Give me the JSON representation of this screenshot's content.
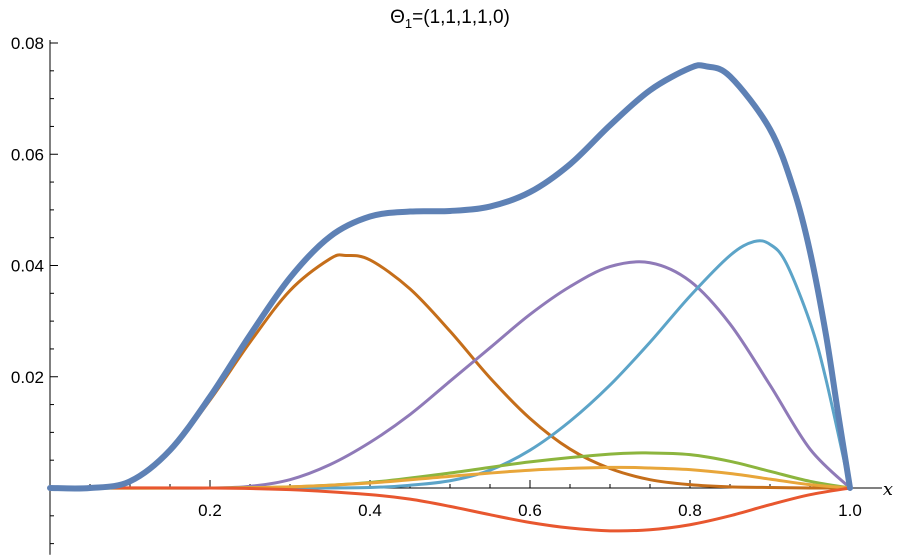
{
  "chart_data": {
    "type": "line",
    "title": {
      "main": "Θ",
      "subscript": "1",
      "rest": "=(1,1,1,1,0)"
    },
    "xlabel": "x",
    "ylabel": "",
    "xlim": [
      0,
      1.0
    ],
    "ylim": [
      -0.012,
      0.082
    ],
    "x_ticks": [
      0.2,
      0.4,
      0.6,
      0.8,
      1.0
    ],
    "x_tick_labels": [
      "0.2",
      "0.4",
      "0.6",
      "0.8",
      "1.0"
    ],
    "x_minor_step": 0.05,
    "y_ticks": [
      0.02,
      0.04,
      0.06,
      0.08
    ],
    "y_tick_labels": [
      "0.02",
      "0.04",
      "0.06",
      "0.08"
    ],
    "y_minor_step": 0.005,
    "grid": false,
    "legend": "none",
    "series": [
      {
        "color": "#5e81b5",
        "width": 6,
        "x": [
          0,
          0.05,
          0.1,
          0.15,
          0.2,
          0.25,
          0.3,
          0.35,
          0.4,
          0.45,
          0.5,
          0.55,
          0.6,
          0.65,
          0.7,
          0.75,
          0.8,
          0.82,
          0.85,
          0.9,
          0.93,
          0.95,
          0.97,
          0.985,
          1.0
        ],
        "y": [
          0,
          0,
          0.0012,
          0.0068,
          0.0164,
          0.0275,
          0.0378,
          0.0452,
          0.0488,
          0.0497,
          0.0498,
          0.0506,
          0.0532,
          0.0582,
          0.0652,
          0.0715,
          0.0755,
          0.0758,
          0.074,
          0.0645,
          0.0535,
          0.0425,
          0.0275,
          0.0135,
          0
        ]
      },
      {
        "color": "#c56e1a",
        "width": 3,
        "x": [
          0,
          0.05,
          0.1,
          0.15,
          0.2,
          0.25,
          0.3,
          0.35,
          0.37,
          0.4,
          0.45,
          0.5,
          0.55,
          0.6,
          0.65,
          0.7,
          0.75,
          0.8,
          0.85,
          0.9,
          0.95,
          1.0
        ],
        "y": [
          0,
          0,
          0.0012,
          0.0066,
          0.0158,
          0.0262,
          0.0355,
          0.0412,
          0.0418,
          0.041,
          0.0358,
          0.0282,
          0.0198,
          0.0125,
          0.007,
          0.0035,
          0.0015,
          0.0006,
          0.0002,
          0.0001,
          0,
          0
        ]
      },
      {
        "color": "#8f7ab8",
        "width": 3,
        "x": [
          0,
          0.1,
          0.2,
          0.25,
          0.3,
          0.35,
          0.4,
          0.45,
          0.5,
          0.55,
          0.6,
          0.65,
          0.7,
          0.75,
          0.8,
          0.85,
          0.9,
          0.95,
          1.0
        ],
        "y": [
          0,
          0,
          0,
          0.0003,
          0.0015,
          0.0042,
          0.0082,
          0.0132,
          0.0192,
          0.0252,
          0.0312,
          0.0362,
          0.0398,
          0.0405,
          0.0372,
          0.0295,
          0.0185,
          0.007,
          0
        ]
      },
      {
        "color": "#5ca4c8",
        "width": 3,
        "x": [
          0,
          0.3,
          0.4,
          0.45,
          0.5,
          0.55,
          0.6,
          0.65,
          0.7,
          0.75,
          0.8,
          0.85,
          0.88,
          0.9,
          0.92,
          0.95,
          0.97,
          1.0
        ],
        "y": [
          0,
          0,
          0.0001,
          0.0005,
          0.0013,
          0.0032,
          0.0068,
          0.012,
          0.0185,
          0.0262,
          0.0345,
          0.0418,
          0.0443,
          0.0438,
          0.0405,
          0.0298,
          0.0195,
          0
        ]
      },
      {
        "color": "#8cb53e",
        "width": 3,
        "x": [
          0,
          0.2,
          0.3,
          0.4,
          0.5,
          0.6,
          0.7,
          0.75,
          0.8,
          0.85,
          0.9,
          0.95,
          1.0
        ],
        "y": [
          0,
          0,
          0.0002,
          0.001,
          0.0027,
          0.0047,
          0.0061,
          0.0063,
          0.006,
          0.0048,
          0.003,
          0.0012,
          0
        ]
      },
      {
        "color": "#e8a63a",
        "width": 3,
        "x": [
          0,
          0.2,
          0.3,
          0.4,
          0.5,
          0.6,
          0.7,
          0.75,
          0.8,
          0.85,
          0.9,
          0.95,
          1.0
        ],
        "y": [
          0,
          0,
          0.0002,
          0.0009,
          0.0021,
          0.0032,
          0.0037,
          0.0036,
          0.0033,
          0.0026,
          0.0016,
          0.0006,
          0
        ]
      },
      {
        "color": "#e8572f",
        "width": 3,
        "x": [
          0,
          0.2,
          0.3,
          0.4,
          0.45,
          0.5,
          0.55,
          0.6,
          0.65,
          0.7,
          0.75,
          0.8,
          0.85,
          0.9,
          0.95,
          1.0
        ],
        "y": [
          0,
          0,
          -0.0003,
          -0.0012,
          -0.002,
          -0.0033,
          -0.0048,
          -0.0062,
          -0.0072,
          -0.0077,
          -0.0075,
          -0.0066,
          -0.005,
          -0.003,
          -0.0012,
          0
        ]
      }
    ]
  }
}
